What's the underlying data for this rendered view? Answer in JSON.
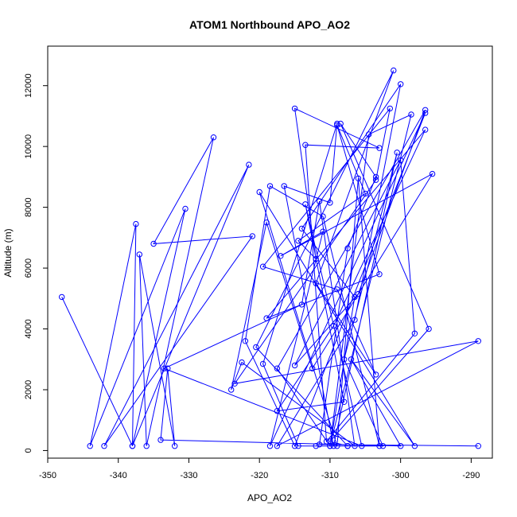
{
  "chart_data": {
    "type": "scatter",
    "mode": "lines+markers",
    "title": "ATOM1 Northbound APO_AO2",
    "xlabel": "APO_AO2",
    "ylabel": "Altitude (m)",
    "xlim": [
      -350,
      -287
    ],
    "ylim": [
      -250,
      13300
    ],
    "xticks": [
      -350,
      -340,
      -330,
      -320,
      -310,
      -300,
      -290
    ],
    "yticks": [
      0,
      2000,
      4000,
      6000,
      8000,
      10000,
      12000
    ],
    "grid": false,
    "legend": "none",
    "series": [
      {
        "color": "#0000ff",
        "x": [
          -348,
          -338,
          -337.5,
          -344,
          -330.5,
          -338,
          -321.5,
          -342,
          -321,
          -335,
          -326.5,
          -336,
          -337,
          -332,
          -333,
          -334,
          -300,
          -307,
          -298,
          -320,
          -309,
          -306,
          -303,
          -311,
          -318.5,
          -322,
          -315,
          -296.5,
          -318.5,
          -311,
          -317,
          -295.5,
          -312.5,
          -319,
          -324,
          -322.5,
          -306.5,
          -311.5,
          -314,
          -333.5,
          -305.5,
          -313.5,
          -308,
          -317.5,
          -309.5,
          -296.5,
          -319,
          -303,
          -309,
          -305,
          -314.5,
          -312,
          -315,
          -303,
          -313.5,
          -310.5,
          -298,
          -300,
          -315,
          -306,
          -296.5,
          -317.5,
          -310,
          -298.5,
          -304.5,
          -310,
          -306.5,
          -314,
          -300,
          -306.5,
          -317.5,
          -289,
          -323.5,
          -303.5,
          -301.5,
          -319.5,
          -309,
          -303.5,
          -312,
          -301,
          -320.5,
          -307.5,
          -312,
          -302.5,
          -308,
          -300.5,
          -309.5,
          -316.5,
          -310,
          -309,
          -319.5,
          -314.5,
          -307.5,
          -310,
          -296,
          -308.5,
          -303.5,
          -307.5,
          -311.5,
          -289
        ],
        "y": [
          5050,
          150,
          7450,
          150,
          7950,
          150,
          9400,
          150,
          7050,
          6800,
          10300,
          150,
          6450,
          150,
          2700,
          350,
          150,
          3000,
          150,
          8500,
          150,
          8950,
          150,
          7700,
          8700,
          3600,
          150,
          11100,
          150,
          7200,
          6400,
          9100,
          2700,
          7500,
          2000,
          2900,
          150,
          8200,
          4800,
          2700,
          150,
          8100,
          1600,
          1300,
          4100,
          10550,
          4350,
          5800,
          10700,
          8450,
          6900,
          6300,
          11250,
          9950,
          10050,
          300,
          3850,
          9550,
          2800,
          5150,
          11200,
          2700,
          150,
          11050,
          10400,
          150,
          5050,
          7300,
          12050,
          4300,
          150,
          3600,
          2200,
          8900,
          11250,
          6050,
          5300,
          2500,
          5500,
          12500,
          3400,
          150,
          150,
          150,
          3000,
          9800,
          150,
          8700,
          8150,
          10750,
          2850,
          150,
          150,
          300,
          4000,
          10750,
          9000,
          6650,
          200,
          150
        ]
      }
    ]
  }
}
